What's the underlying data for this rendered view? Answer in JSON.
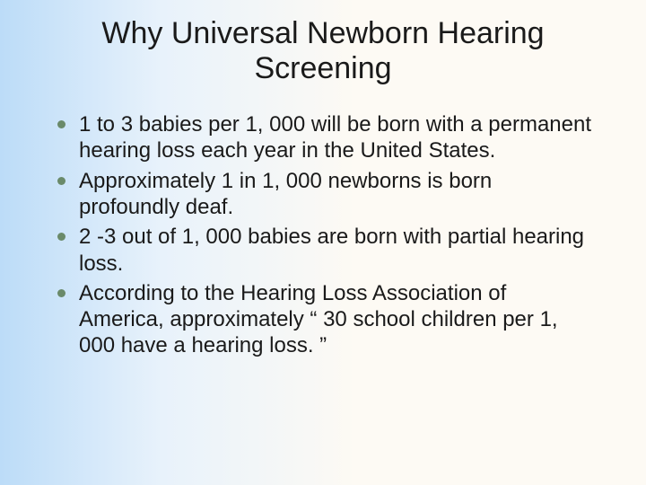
{
  "slide": {
    "title": "Why Universal Newborn Hearing Screening",
    "bullets": [
      "1 to 3 babies per 1, 000 will be born with a permanent hearing loss each year in the United States.",
      "Approximately 1 in 1, 000 newborns is born profoundly deaf.",
      "2 -3 out of 1, 000 babies are born with partial hearing loss.",
      "According to the Hearing Loss Association of America, approximately “ 30 school children per 1, 000 have a hearing loss. ”"
    ],
    "style": {
      "type": "infographic",
      "background_gradient": [
        "#bcdcf8",
        "#e8f2fb",
        "#fdfaf4"
      ],
      "title_fontsize": 34,
      "title_color": "#1a1a1a",
      "title_weight": "normal",
      "body_fontsize": 24,
      "body_color": "#1a1a1a",
      "bullet_marker_color": "#6a8a6a",
      "bullet_marker_shape": "circle",
      "bullet_marker_size": 9,
      "font_family": "Arial"
    }
  }
}
